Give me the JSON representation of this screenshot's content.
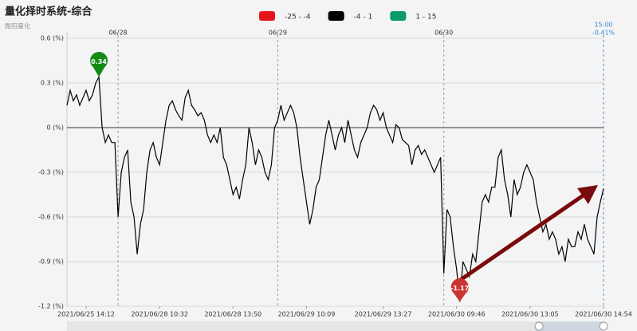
{
  "chart_data": {
    "type": "line",
    "title": "量化择时系统-综合",
    "subtitle": "舞阳量化",
    "legend": [
      {
        "label": "-25 - -4",
        "color": "#e8141b"
      },
      {
        "label": "-4 - 1",
        "color": "#000000"
      },
      {
        "label": "1 - 15",
        "color": "#0a9a6e"
      }
    ],
    "end_time": "15:00",
    "end_value_label": "-0.41%",
    "ylim": [
      -1.2,
      0.6
    ],
    "yticks": [
      {
        "value": 0.6,
        "label": "0.6 (%)"
      },
      {
        "value": 0.3,
        "label": "0.3 (%)"
      },
      {
        "value": 0,
        "label": "0 (%)"
      },
      {
        "value": -0.3,
        "label": "-0.3 (%)"
      },
      {
        "value": -0.6,
        "label": "-0.6 (%)"
      },
      {
        "value": -0.9,
        "label": "-0.9 (%)"
      },
      {
        "value": -1.2,
        "label": "-1.2 (%)"
      }
    ],
    "xlim": [
      0,
      168
    ],
    "xticks": [
      {
        "value": 6,
        "label": "2021/06/25 14:12"
      },
      {
        "value": 29,
        "label": "2021/06/28 10:32"
      },
      {
        "value": 52,
        "label": "2021/06/28 13:50"
      },
      {
        "value": 75,
        "label": "2021/06/29 10:09"
      },
      {
        "value": 99,
        "label": "2021/06/29 13:27"
      },
      {
        "value": 122,
        "label": "2021/06/30 09:46"
      },
      {
        "value": 145,
        "label": "2021/06/30 13:05"
      },
      {
        "value": 168,
        "label": "2021/06/30 14:54"
      }
    ],
    "day_ticks": [
      {
        "value": 16,
        "label": "06/28"
      },
      {
        "value": 66,
        "label": "06/29"
      },
      {
        "value": 118,
        "label": "06/30"
      }
    ],
    "grid": true,
    "series": [
      {
        "color": "#000000",
        "values": [
          0.15,
          0.25,
          0.18,
          0.22,
          0.15,
          0.2,
          0.25,
          0.18,
          0.22,
          0.3,
          0.34,
          0.0,
          -0.1,
          -0.05,
          -0.1,
          -0.1,
          -0.6,
          -0.3,
          -0.2,
          -0.15,
          -0.5,
          -0.6,
          -0.85,
          -0.65,
          -0.55,
          -0.3,
          -0.15,
          -0.1,
          -0.2,
          -0.25,
          -0.1,
          0.05,
          0.15,
          0.18,
          0.12,
          0.08,
          0.05,
          0.2,
          0.25,
          0.15,
          0.12,
          0.08,
          0.1,
          0.05,
          -0.05,
          -0.1,
          -0.05,
          -0.1,
          0.0,
          -0.2,
          -0.25,
          -0.35,
          -0.45,
          -0.4,
          -0.48,
          -0.35,
          -0.25,
          0.0,
          -0.1,
          -0.25,
          -0.15,
          -0.2,
          -0.3,
          -0.35,
          -0.25,
          0.0,
          0.05,
          0.15,
          0.05,
          0.1,
          0.15,
          0.1,
          0.0,
          -0.2,
          -0.35,
          -0.5,
          -0.65,
          -0.55,
          -0.4,
          -0.35,
          -0.2,
          -0.05,
          0.05,
          -0.05,
          -0.15,
          -0.05,
          0.0,
          -0.1,
          0.05,
          -0.05,
          -0.15,
          -0.2,
          -0.1,
          -0.05,
          0.0,
          0.1,
          0.15,
          0.12,
          0.05,
          0.1,
          0.0,
          -0.05,
          -0.1,
          0.02,
          0.0,
          -0.08,
          -0.1,
          -0.12,
          -0.25,
          -0.15,
          -0.12,
          -0.18,
          -0.15,
          -0.2,
          -0.25,
          -0.3,
          -0.25,
          -0.2,
          -0.98,
          -0.55,
          -0.6,
          -0.8,
          -0.95,
          -1.17,
          -0.9,
          -0.95,
          -1.0,
          -0.85,
          -0.9,
          -0.7,
          -0.5,
          -0.45,
          -0.5,
          -0.4,
          -0.4,
          -0.2,
          -0.15,
          -0.35,
          -0.45,
          -0.6,
          -0.35,
          -0.45,
          -0.4,
          -0.3,
          -0.25,
          -0.3,
          -0.35,
          -0.5,
          -0.6,
          -0.7,
          -0.65,
          -0.75,
          -0.7,
          -0.75,
          -0.85,
          -0.8,
          -0.9,
          -0.75,
          -0.8,
          -0.8,
          -0.7,
          -0.75,
          -0.65,
          -0.75,
          -0.8,
          -0.85,
          -0.6,
          -0.5,
          -0.41
        ]
      }
    ],
    "markers": [
      {
        "index": 10,
        "value": 0.34,
        "label": "0.34",
        "color": "#138a13"
      },
      {
        "index": 123,
        "value": -1.17,
        "label": "-1.17",
        "color": "#cc3333"
      }
    ]
  }
}
